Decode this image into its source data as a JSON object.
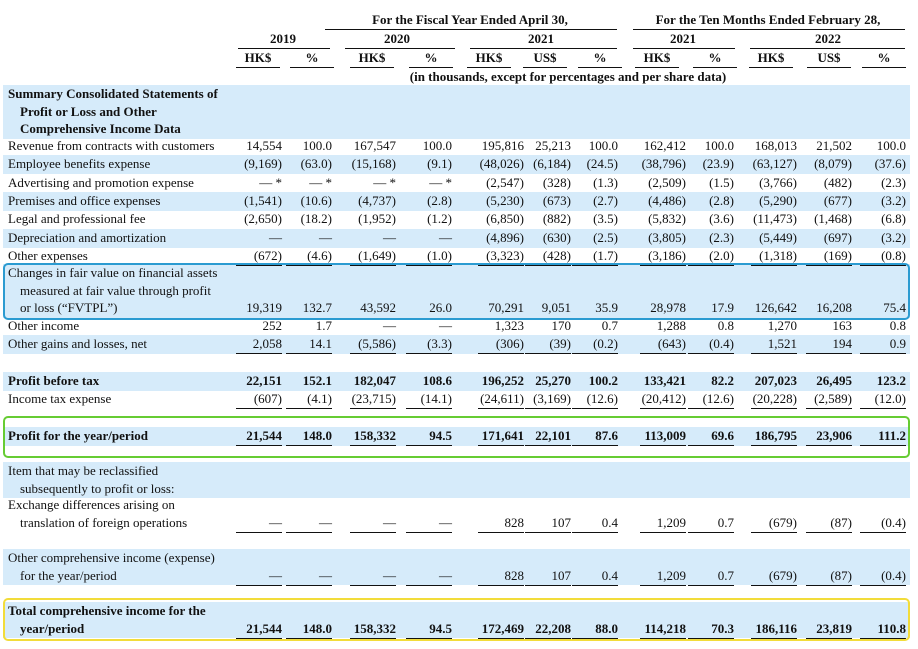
{
  "header": {
    "period_groups": [
      "For the Fiscal Year Ended April 30,",
      "For the Ten Months Ended February 28,"
    ],
    "years": [
      "2019",
      "2020",
      "2021",
      "2021",
      "2022"
    ],
    "columns": [
      "HK$",
      "%",
      "HK$",
      "%",
      "HK$",
      "US$",
      "%",
      "HK$",
      "%",
      "HK$",
      "US$",
      "%"
    ],
    "note": "(in thousands, except for percentages and per share data)"
  },
  "table": {
    "rows": [
      {
        "label": [
          "Summary Consolidated Statements of",
          "Profit or Loss and Other",
          "Comprehensive Income Data"
        ]
      },
      {
        "label": [
          "Revenue from contracts with customers"
        ],
        "values": [
          "14,554",
          "100.0",
          "167,547",
          "100.0",
          "195,816",
          "25,213",
          "100.0",
          "162,412",
          "100.0",
          "168,013",
          "21,502",
          "100.0"
        ]
      },
      {
        "label": [
          "Employee benefits expense"
        ],
        "values": [
          "(9,169)",
          "(63.0)",
          "(15,168)",
          "(9.1)",
          "(48,026)",
          "(6,184)",
          "(24.5)",
          "(38,796)",
          "(23.9)",
          "(63,127)",
          "(8,079)",
          "(37.6)"
        ]
      },
      {
        "label": [
          "Advertising and promotion expense"
        ],
        "values": [
          "— *",
          "— *",
          "— *",
          "— *",
          "(2,547)",
          "(328)",
          "(1.3)",
          "(2,509)",
          "(1.5)",
          "(3,766)",
          "(482)",
          "(2.3)"
        ]
      },
      {
        "label": [
          "Premises and office expenses"
        ],
        "values": [
          "(1,541)",
          "(10.6)",
          "(4,737)",
          "(2.8)",
          "(5,230)",
          "(673)",
          "(2.7)",
          "(4,486)",
          "(2.8)",
          "(5,290)",
          "(677)",
          "(3.2)"
        ]
      },
      {
        "label": [
          "Legal and professional fee"
        ],
        "values": [
          "(2,650)",
          "(18.2)",
          "(1,952)",
          "(1.2)",
          "(6,850)",
          "(882)",
          "(3.5)",
          "(5,832)",
          "(3.6)",
          "(11,473)",
          "(1,468)",
          "(6.8)"
        ]
      },
      {
        "label": [
          "Depreciation and amortization"
        ],
        "values": [
          "—",
          "—",
          "—",
          "—",
          "(4,896)",
          "(630)",
          "(2.5)",
          "(3,805)",
          "(2.3)",
          "(5,449)",
          "(697)",
          "(3.2)"
        ]
      },
      {
        "label": [
          "Other expenses"
        ],
        "values": [
          "(672)",
          "(4.6)",
          "(1,649)",
          "(1.0)",
          "(3,323)",
          "(428)",
          "(1.7)",
          "(3,186)",
          "(2.0)",
          "(1,318)",
          "(169)",
          "(0.8)"
        ]
      },
      {
        "label": [
          "Changes in fair value on financial assets",
          "measured at fair value through profit",
          "or loss (“FVTPL”)"
        ],
        "values": [
          "19,319",
          "132.7",
          "43,592",
          "26.0",
          "70,291",
          "9,051",
          "35.9",
          "28,978",
          "17.9",
          "126,642",
          "16,208",
          "75.4"
        ]
      },
      {
        "label": [
          "Other income"
        ],
        "values": [
          "252",
          "1.7",
          "—",
          "—",
          "1,323",
          "170",
          "0.7",
          "1,288",
          "0.8",
          "1,270",
          "163",
          "0.8"
        ]
      },
      {
        "label": [
          "Other gains and losses, net"
        ],
        "values": [
          "2,058",
          "14.1",
          "(5,586)",
          "(3.3)",
          "(306)",
          "(39)",
          "(0.2)",
          "(643)",
          "(0.4)",
          "1,521",
          "194",
          "0.9"
        ]
      },
      {
        "label": [
          "Profit before tax"
        ],
        "values": [
          "22,151",
          "152.1",
          "182,047",
          "108.6",
          "196,252",
          "25,270",
          "100.2",
          "133,421",
          "82.2",
          "207,023",
          "26,495",
          "123.2"
        ]
      },
      {
        "label": [
          "Income tax expense"
        ],
        "values": [
          "(607)",
          "(4.1)",
          "(23,715)",
          "(14.1)",
          "(24,611)",
          "(3,169)",
          "(12.6)",
          "(20,412)",
          "(12.6)",
          "(20,228)",
          "(2,589)",
          "(12.0)"
        ]
      },
      {
        "label": [
          "Profit for the year/period"
        ],
        "values": [
          "21,544",
          "148.0",
          "158,332",
          "94.5",
          "171,641",
          "22,101",
          "87.6",
          "113,009",
          "69.6",
          "186,795",
          "23,906",
          "111.2"
        ]
      },
      {
        "label": [
          "Item that may be reclassified",
          "subsequently to profit or loss:"
        ]
      },
      {
        "label": [
          "Exchange differences arising on",
          "translation of foreign operations"
        ],
        "values": [
          "—",
          "—",
          "—",
          "—",
          "828",
          "107",
          "0.4",
          "1,209",
          "0.7",
          "(679)",
          "(87)",
          "(0.4)"
        ]
      },
      {
        "label": [
          "Other comprehensive income (expense)",
          "for the year/period"
        ],
        "values": [
          "—",
          "—",
          "—",
          "—",
          "828",
          "107",
          "0.4",
          "1,209",
          "0.7",
          "(679)",
          "(87)",
          "(0.4)"
        ]
      },
      {
        "label": [
          "Total comprehensive income for the",
          "year/period"
        ],
        "values": [
          "21,544",
          "148.0",
          "158,332",
          "94.5",
          "172,469",
          "22,208",
          "88.0",
          "114,218",
          "70.3",
          "186,116",
          "23,819",
          "110.8"
        ]
      }
    ]
  }
}
